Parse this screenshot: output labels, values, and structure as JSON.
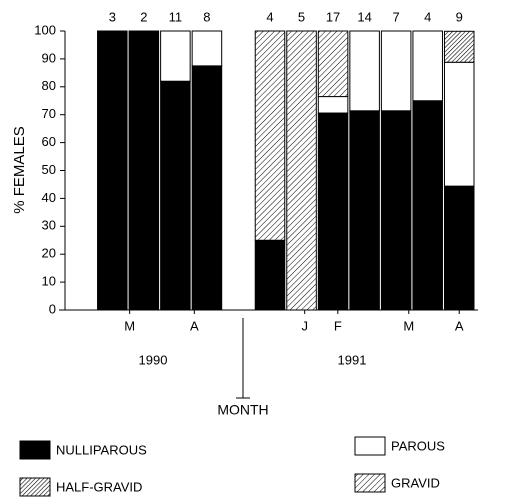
{
  "chart_data": {
    "type": "stacked-bar",
    "ylabel": "% FEMALES",
    "xlabel": "MONTH",
    "categories": [
      null,
      null,
      null,
      null,
      null,
      null,
      null,
      null,
      null,
      null,
      null,
      null,
      null
    ],
    "counts": [
      null,
      3,
      2,
      11,
      8,
      null,
      4,
      5,
      17,
      14,
      7,
      4,
      9
    ],
    "month_labels": [
      "M",
      "A",
      "J",
      "F",
      "M",
      "A"
    ],
    "year_labels": [
      "1990",
      "1991"
    ],
    "series": [
      {
        "name": "NULLIPAROUS",
        "color": "#000000",
        "pattern": "solid",
        "values": [
          null,
          100,
          100,
          82,
          87.5,
          null,
          25,
          0,
          70.6,
          71.4,
          71.4,
          75,
          44.4
        ]
      },
      {
        "name": "PAROUS",
        "color": "#ffffff",
        "pattern": "solid",
        "values": [
          null,
          0,
          0,
          18,
          12.5,
          null,
          0,
          0,
          5.9,
          28.6,
          28.6,
          25,
          44.4
        ]
      },
      {
        "name": "GRAVID",
        "color": "#000000",
        "pattern": "diagonal",
        "values": [
          null,
          0,
          0,
          0,
          0,
          null,
          75,
          100,
          23.5,
          0,
          0,
          0,
          0
        ]
      },
      {
        "name": "HALF-GRAVID",
        "color": "#000000",
        "pattern": "diagonal-dense",
        "values": [
          null,
          0,
          0,
          0,
          0,
          null,
          0,
          0,
          0,
          0,
          0,
          0,
          11.1
        ]
      }
    ],
    "ylim": [
      0,
      100
    ],
    "yticks": [
      0,
      10,
      20,
      30,
      40,
      50,
      60,
      70,
      80,
      90,
      100
    ]
  }
}
